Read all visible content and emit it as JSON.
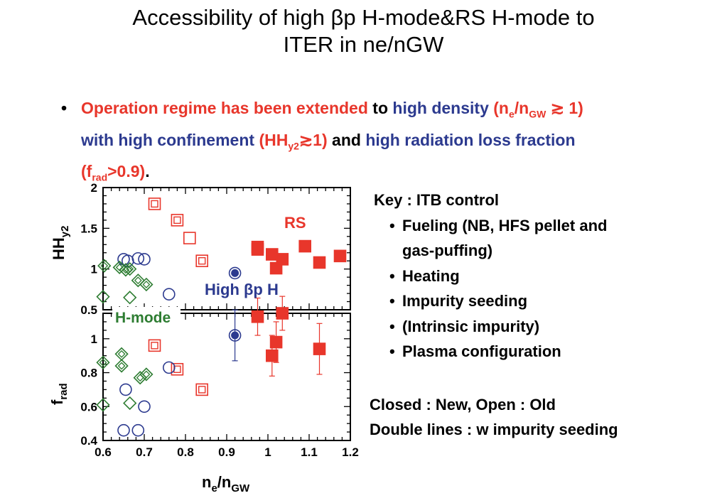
{
  "title": {
    "line1": "Accessibility of high βp H-mode&RS H-mode to",
    "line2": "ITER in ne/nGW"
  },
  "bullet": {
    "seg1": "Operation regime has been extended",
    "seg2": " to ",
    "seg3": "high density",
    "seg4": "(n",
    "seg4sub": "e",
    "seg4b": "/n",
    "seg4sub2": "GW",
    "seg4c": " ≳ 1)",
    "seg5": "with high confinement",
    "seg6": "(HH",
    "seg6sub": "y2",
    "seg6b": "≳1)",
    "seg7": " and ",
    "seg8": "high radiation loss fraction",
    "seg9": "(f",
    "seg9sub": "rad",
    "seg9b": ">0.9)",
    "seg10": "."
  },
  "key": {
    "heading": "Key : ITB control",
    "items": [
      "Fueling (NB, HFS pellet and",
      "Heating",
      "Impurity seeding",
      "(Intrinsic impurity)",
      "Plasma configuration"
    ],
    "item0_cont": "gas-puffing)"
  },
  "notes": {
    "line1": "Closed : New, Open : Old",
    "line2": "Double lines : w impurity seeding"
  },
  "colors": {
    "rs": "#e8362b",
    "betap": "#2c3a8f",
    "hmode": "#2e7d32"
  },
  "chart_data": [
    {
      "type": "scatter",
      "ylabel": "HHy2",
      "xlabel": "ne/nGW",
      "xlim": [
        0.6,
        1.2
      ],
      "ylim": [
        0.5,
        2
      ],
      "yticks": [
        "2",
        "1.5",
        "1",
        "0.5"
      ],
      "annotations": [
        "RS",
        "High βp H",
        "H-mode"
      ],
      "series": [
        {
          "name": "RS",
          "marker": "square",
          "color": "#e8362b",
          "points": [
            {
              "x": 0.725,
              "y": 1.8,
              "style": "double"
            },
            {
              "x": 0.78,
              "y": 1.6,
              "style": "double"
            },
            {
              "x": 0.81,
              "y": 1.38,
              "style": "open"
            },
            {
              "x": 0.84,
              "y": 1.1,
              "style": "double"
            },
            {
              "x": 0.975,
              "y": 1.27,
              "style": "closed"
            },
            {
              "x": 0.975,
              "y": 1.24,
              "style": "closed"
            },
            {
              "x": 1.01,
              "y": 1.18,
              "style": "closed"
            },
            {
              "x": 1.02,
              "y": 1.01,
              "style": "closed"
            },
            {
              "x": 1.035,
              "y": 1.12,
              "style": "closed"
            },
            {
              "x": 1.09,
              "y": 1.28,
              "style": "closed"
            },
            {
              "x": 1.125,
              "y": 1.08,
              "style": "closed"
            },
            {
              "x": 1.175,
              "y": 1.16,
              "style": "closed"
            }
          ]
        },
        {
          "name": "High βp H",
          "marker": "circle",
          "color": "#2c3a8f",
          "points": [
            {
              "x": 0.65,
              "y": 1.12,
              "style": "open"
            },
            {
              "x": 0.66,
              "y": 1.1,
              "style": "open"
            },
            {
              "x": 0.685,
              "y": 1.13,
              "style": "open"
            },
            {
              "x": 0.7,
              "y": 1.12,
              "style": "open"
            },
            {
              "x": 0.76,
              "y": 0.69,
              "style": "open"
            },
            {
              "x": 0.92,
              "y": 0.95,
              "style": "double"
            }
          ]
        },
        {
          "name": "H-mode",
          "marker": "diamond",
          "color": "#2e7d32",
          "points": [
            {
              "x": 0.603,
              "y": 1.04,
              "style": "double"
            },
            {
              "x": 0.6,
              "y": 0.66,
              "style": "open"
            },
            {
              "x": 0.64,
              "y": 1.02,
              "style": "double"
            },
            {
              "x": 0.655,
              "y": 0.99,
              "style": "double"
            },
            {
              "x": 0.665,
              "y": 1.0,
              "style": "double"
            },
            {
              "x": 0.685,
              "y": 0.86,
              "style": "double"
            },
            {
              "x": 0.705,
              "y": 0.81,
              "style": "double"
            },
            {
              "x": 0.665,
              "y": 0.65,
              "style": "open"
            }
          ]
        }
      ]
    },
    {
      "type": "scatter",
      "ylabel": "frad",
      "xlabel": "ne/nGW",
      "xlim": [
        0.6,
        1.2
      ],
      "ylim": [
        0.4,
        1.15
      ],
      "xticks": [
        "0.6",
        "0.7",
        "0.8",
        "0.9",
        "1",
        "1.1",
        "1.2"
      ],
      "yticks": [
        "1",
        "0.8",
        "0.6",
        "0.4"
      ],
      "series": [
        {
          "name": "RS",
          "marker": "square",
          "color": "#e8362b",
          "points": [
            {
              "x": 0.725,
              "y": 0.96,
              "style": "double"
            },
            {
              "x": 0.78,
              "y": 0.82,
              "style": "double"
            },
            {
              "x": 0.84,
              "y": 0.7,
              "style": "double"
            },
            {
              "x": 0.975,
              "y": 1.13,
              "style": "closed",
              "err": 0.11
            },
            {
              "x": 1.01,
              "y": 0.9,
              "style": "closed",
              "err": 0.12
            },
            {
              "x": 1.02,
              "y": 0.98,
              "style": "closed",
              "err": 0.12
            },
            {
              "x": 1.035,
              "y": 1.15,
              "style": "closed",
              "err": 0.1
            },
            {
              "x": 1.125,
              "y": 0.94,
              "style": "closed",
              "err": 0.15
            }
          ]
        },
        {
          "name": "High βp H",
          "marker": "circle",
          "color": "#2c3a8f",
          "points": [
            {
              "x": 0.655,
              "y": 0.7,
              "style": "open"
            },
            {
              "x": 0.65,
              "y": 0.46,
              "style": "open"
            },
            {
              "x": 0.685,
              "y": 0.46,
              "style": "open"
            },
            {
              "x": 0.7,
              "y": 0.6,
              "style": "open"
            },
            {
              "x": 0.76,
              "y": 0.83,
              "style": "open"
            },
            {
              "x": 0.92,
              "y": 1.02,
              "style": "double",
              "err": 0.15
            }
          ]
        },
        {
          "name": "H-mode",
          "marker": "diamond",
          "color": "#2e7d32",
          "points": [
            {
              "x": 0.6,
              "y": 0.86,
              "style": "double"
            },
            {
              "x": 0.6,
              "y": 0.61,
              "style": "open"
            },
            {
              "x": 0.645,
              "y": 0.91,
              "style": "double"
            },
            {
              "x": 0.645,
              "y": 0.84,
              "style": "double"
            },
            {
              "x": 0.665,
              "y": 0.62,
              "style": "open"
            },
            {
              "x": 0.69,
              "y": 0.77,
              "style": "double"
            },
            {
              "x": 0.705,
              "y": 0.79,
              "style": "double"
            }
          ]
        }
      ]
    }
  ]
}
